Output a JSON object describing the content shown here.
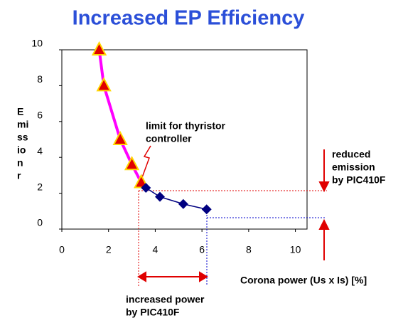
{
  "chart_data": {
    "type": "line",
    "title": "Increased EP Efficiency",
    "x_label": "Corona power (Us x Is) [%]",
    "y_label_lines": [
      "E",
      "mi",
      "ss",
      "io",
      "n",
      "r"
    ],
    "xlim": [
      0,
      10.5
    ],
    "ylim": [
      0,
      10
    ],
    "xticks": [
      0,
      2,
      4,
      6,
      8,
      10
    ],
    "yticks": [
      0,
      2,
      4,
      6,
      8,
      10
    ],
    "series": [
      {
        "color": "#ff00ff",
        "marker": "triangle",
        "marker_color": "#e00000",
        "x": [
          1.6,
          1.8,
          2.5,
          3.0,
          3.4
        ],
        "values": [
          10,
          8,
          5,
          3.6,
          2.6
        ]
      },
      {
        "color": "#000080",
        "marker": "diamond",
        "marker_color": "#000080",
        "x": [
          3.6,
          4.2,
          5.2,
          6.2
        ],
        "values": [
          2.3,
          1.8,
          1.4,
          1.1
        ]
      }
    ],
    "annotations": {
      "limit": [
        "limit for thyristor",
        "controller"
      ],
      "reduced": [
        "reduced",
        "emission",
        "by PIC410F"
      ],
      "increased": [
        "increased power",
        "by PIC410F"
      ]
    }
  }
}
